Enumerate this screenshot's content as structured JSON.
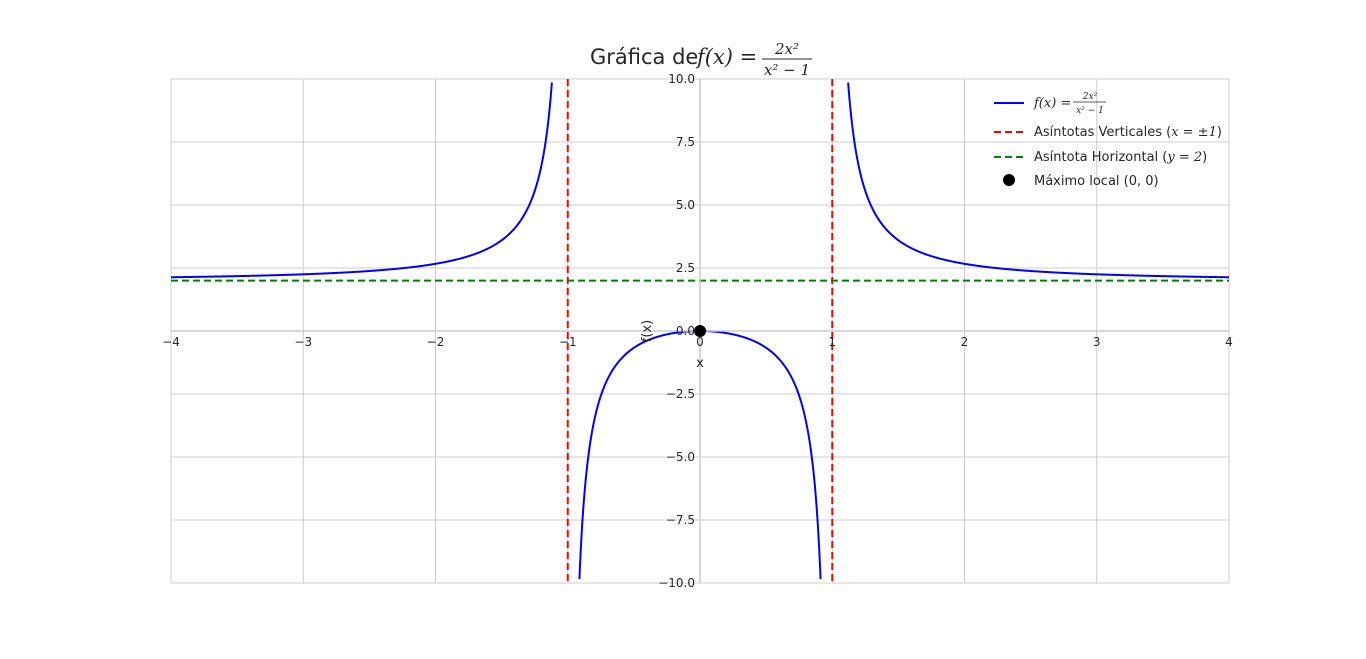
{
  "chart_data": {
    "type": "line",
    "title": "Gráfica de f(x) = 2x²/(x² − 1)",
    "title_parts": {
      "prefix": "Gráfica de",
      "lhs": "f(x) =",
      "numerator": "2x²",
      "denominator": "x² − 1"
    },
    "xlabel": "x",
    "ylabel": "f(x)",
    "xlim": [
      -4,
      4
    ],
    "ylim": [
      -10,
      10
    ],
    "x_ticks": [
      -4,
      -3,
      -2,
      -1,
      0,
      1,
      2,
      3,
      4
    ],
    "x_tick_labels": [
      "−4",
      "−3",
      "−2",
      "−1",
      "0",
      "1",
      "2",
      "3",
      "4"
    ],
    "y_ticks": [
      -10,
      -7.5,
      -5,
      -2.5,
      0,
      2.5,
      5,
      7.5,
      10
    ],
    "y_tick_labels": [
      "−10.0",
      "−7.5",
      "−5.0",
      "−2.5",
      "0.0",
      "2.5",
      "5.0",
      "7.5",
      "10.0"
    ],
    "grid": true,
    "legend_position": "top-right",
    "function": {
      "numerator_coeff": 2,
      "domain": [
        -4,
        4
      ],
      "excluded": [
        -1,
        1
      ]
    },
    "series": [
      {
        "name": "f(x) = 2x²/(x² − 1)",
        "kind": "line",
        "color": "#0000ff",
        "style": "solid",
        "points": [
          [
            -4,
            2.133
          ],
          [
            -3.5,
            2.178
          ],
          [
            -3,
            2.25
          ],
          [
            -2.5,
            2.381
          ],
          [
            -2,
            2.667
          ],
          [
            -1.75,
            3.037
          ],
          [
            -1.5,
            3.6
          ],
          [
            -1.4,
            4.083
          ],
          [
            -1.3,
            4.899
          ],
          [
            -1.25,
            5.556
          ],
          [
            -1.2,
            6.545
          ],
          [
            -1.15,
            8.188
          ],
          [
            -1.12,
            9.861
          ],
          [
            -0.9,
            -8.526
          ],
          [
            -0.8,
            -3.556
          ],
          [
            -0.6,
            -1.125
          ],
          [
            -0.4,
            -0.381
          ],
          [
            -0.2,
            -0.083
          ],
          [
            0,
            0
          ],
          [
            0.2,
            -0.083
          ],
          [
            0.4,
            -0.381
          ],
          [
            0.6,
            -1.125
          ],
          [
            0.8,
            -3.556
          ],
          [
            0.9,
            -8.526
          ],
          [
            1.12,
            9.861
          ],
          [
            1.15,
            8.188
          ],
          [
            1.2,
            6.545
          ],
          [
            1.25,
            5.556
          ],
          [
            1.3,
            4.899
          ],
          [
            1.4,
            4.083
          ],
          [
            1.5,
            3.6
          ],
          [
            1.75,
            3.037
          ],
          [
            2,
            2.667
          ],
          [
            2.5,
            2.381
          ],
          [
            3,
            2.25
          ],
          [
            3.5,
            2.178
          ],
          [
            4,
            2.133
          ]
        ]
      },
      {
        "name": "Asíntotas Verticales (x = ±1)",
        "kind": "vline",
        "x": [
          -1,
          1
        ],
        "color": "#ff0000",
        "style": "dashed"
      },
      {
        "name": "Asíntota Horizontal (y = 2)",
        "kind": "hline",
        "y": 2,
        "color": "#008000",
        "style": "dashed"
      },
      {
        "name": "Máximo local (0, 0)",
        "kind": "point",
        "x": 0,
        "y": 0,
        "color": "#000000"
      }
    ],
    "legend": [
      {
        "label_prefix": "",
        "math": "f(x) =",
        "numerator": "2x²",
        "denominator": "x² − 1",
        "suffix": ""
      },
      {
        "label_prefix": "Asíntotas Verticales (",
        "math": "x = ±1",
        "suffix": ")"
      },
      {
        "label_prefix": "Asíntota Horizontal (",
        "math": "y = 2",
        "suffix": ")"
      },
      {
        "label_prefix": "Máximo local (0, 0)",
        "math": "",
        "suffix": ""
      }
    ]
  }
}
